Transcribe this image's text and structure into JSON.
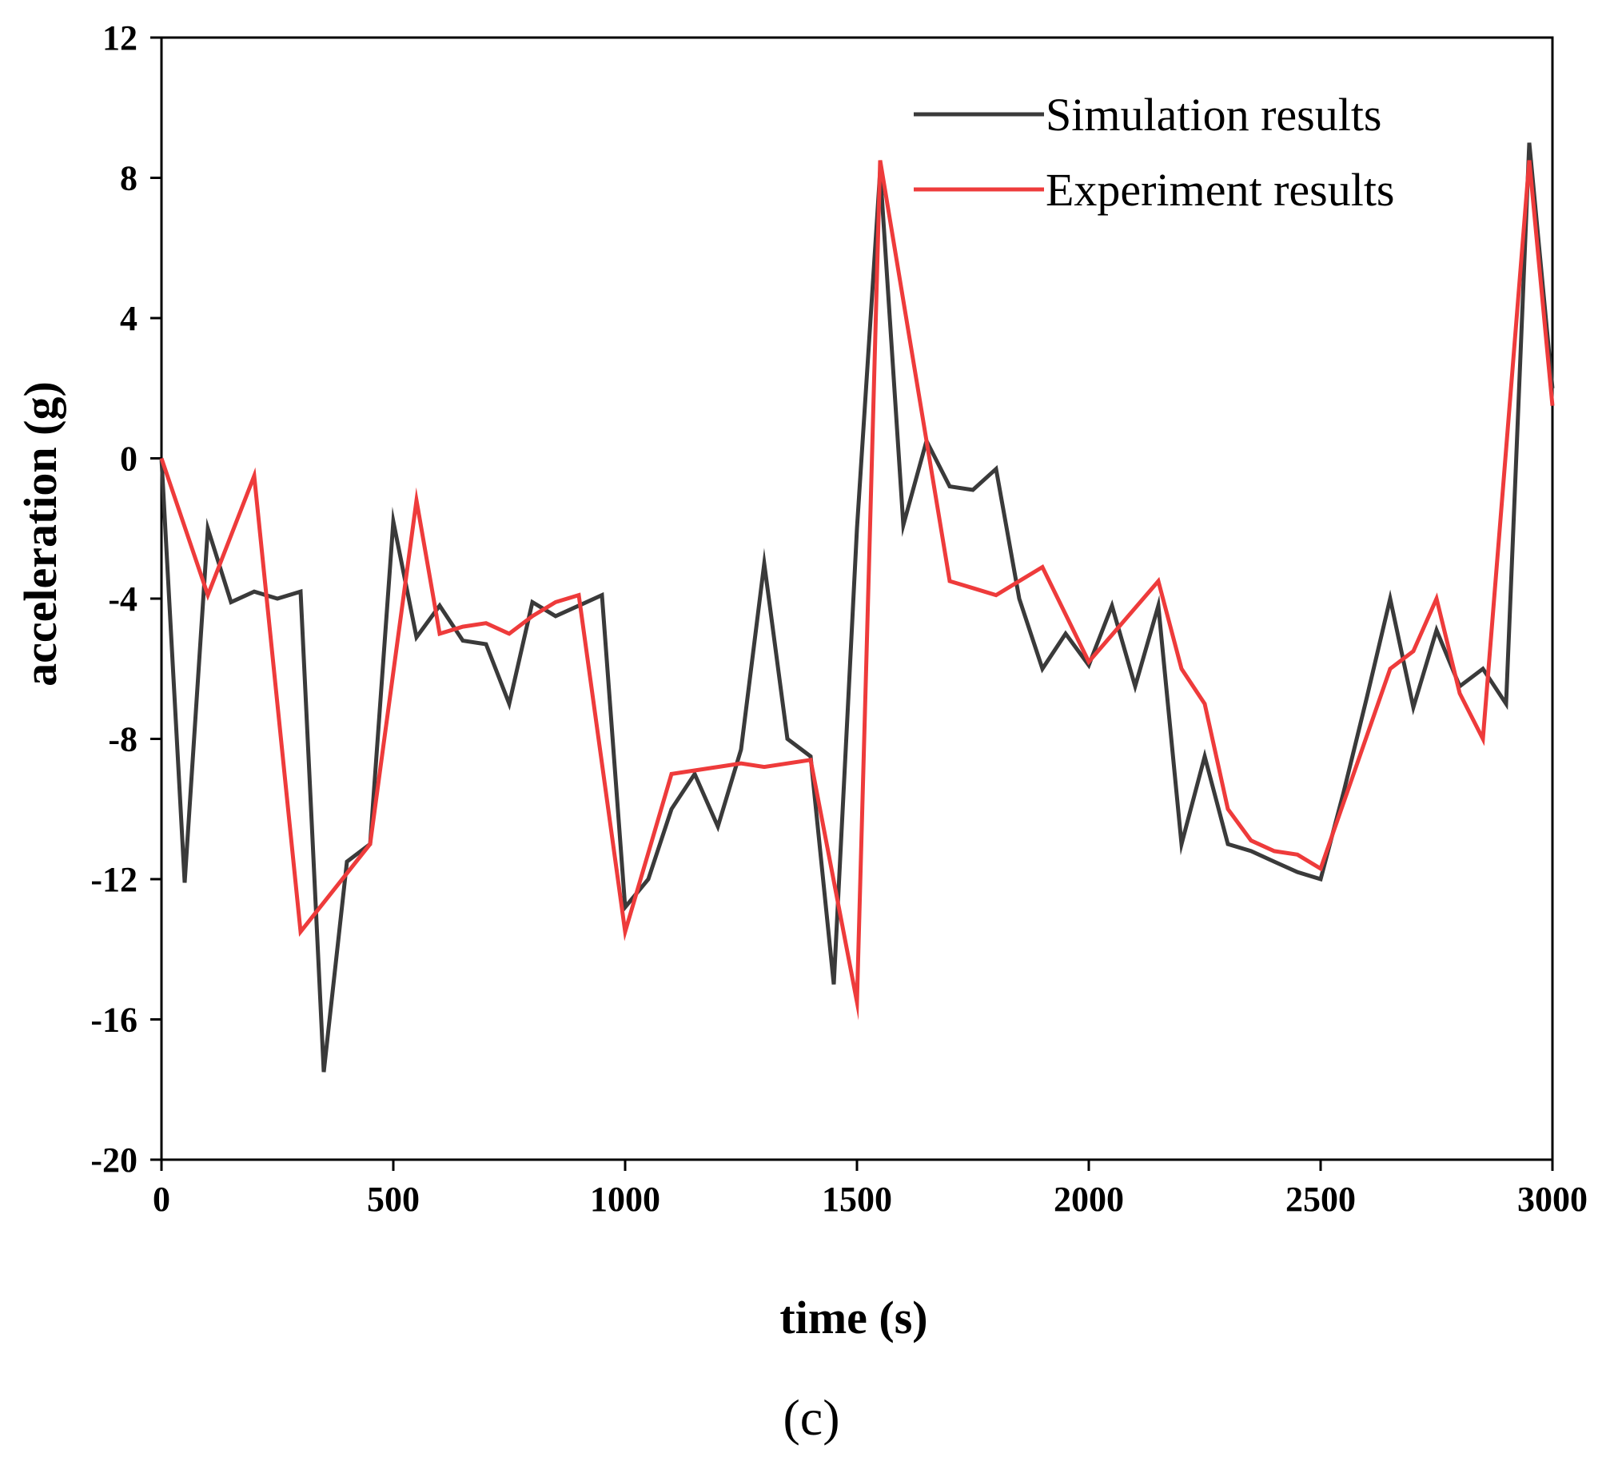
{
  "chart_data": {
    "type": "line",
    "title": "",
    "xlabel": "time (s)",
    "ylabel": "acceleration (g)",
    "xlim": [
      0,
      3000
    ],
    "ylim": [
      -20,
      12
    ],
    "xticks": [
      0,
      500,
      1000,
      1500,
      2000,
      2500,
      3000
    ],
    "yticks": [
      -20,
      -16,
      -12,
      -8,
      -4,
      0,
      4,
      8,
      12
    ],
    "grid": false,
    "legend_position": "top-right",
    "caption": "(c)",
    "series": [
      {
        "name": "Simulation results",
        "color": "#3a3a3a",
        "x": [
          0,
          50,
          100,
          150,
          200,
          250,
          300,
          350,
          400,
          450,
          500,
          550,
          600,
          650,
          700,
          750,
          800,
          850,
          900,
          950,
          1000,
          1050,
          1100,
          1150,
          1200,
          1250,
          1300,
          1350,
          1400,
          1450,
          1500,
          1550,
          1600,
          1650,
          1700,
          1750,
          1800,
          1850,
          1900,
          1950,
          2000,
          2050,
          2100,
          2150,
          2200,
          2250,
          2300,
          2350,
          2400,
          2450,
          2500,
          2550,
          2600,
          2650,
          2700,
          2750,
          2800,
          2850,
          2900,
          2950,
          3000
        ],
        "y": [
          0,
          -12.1,
          -2,
          -4.1,
          -3.8,
          -4,
          -3.8,
          -17.5,
          -11.5,
          -11,
          -1.8,
          -5.1,
          -4.2,
          -5.2,
          -5.3,
          -7,
          -4.1,
          -4.5,
          -4.2,
          -3.9,
          -12.8,
          -12,
          -10,
          -9,
          -10.5,
          -8.3,
          -3,
          -8,
          -8.5,
          -15,
          -2,
          8.2,
          -1.9,
          0.5,
          -0.8,
          -0.9,
          -0.3,
          -4,
          -6,
          -5,
          -5.9,
          -4.2,
          -6.5,
          -4.2,
          -11,
          -8.5,
          -11,
          -11.2,
          -11.5,
          -11.8,
          -12,
          -9.5,
          -6.8,
          -4,
          -7.1,
          -4.9,
          -6.5,
          -6,
          -7,
          9,
          2
        ]
      },
      {
        "name": "Experiment results",
        "color": "#ee3b3b",
        "x": [
          0,
          100,
          200,
          300,
          450,
          550,
          600,
          650,
          700,
          750,
          800,
          850,
          900,
          1000,
          1100,
          1150,
          1200,
          1250,
          1300,
          1350,
          1400,
          1500,
          1550,
          1650,
          1700,
          1750,
          1800,
          1900,
          2000,
          2150,
          2200,
          2250,
          2300,
          2350,
          2400,
          2450,
          2500,
          2650,
          2700,
          2750,
          2800,
          2850,
          2950,
          3000
        ],
        "y": [
          0,
          -3.9,
          -0.5,
          -13.5,
          -11,
          -1.2,
          -5,
          -4.8,
          -4.7,
          -5,
          -4.5,
          -4.1,
          -3.9,
          -13.5,
          -9,
          -8.9,
          -8.8,
          -8.7,
          -8.8,
          -8.7,
          -8.6,
          -15.5,
          8.5,
          0.5,
          -3.5,
          -3.7,
          -3.9,
          -3.1,
          -5.8,
          -3.5,
          -6,
          -7,
          -10,
          -10.9,
          -11.2,
          -11.3,
          -11.7,
          -6,
          -5.5,
          -4,
          -6.7,
          -8,
          8.5,
          1.5
        ]
      }
    ]
  }
}
